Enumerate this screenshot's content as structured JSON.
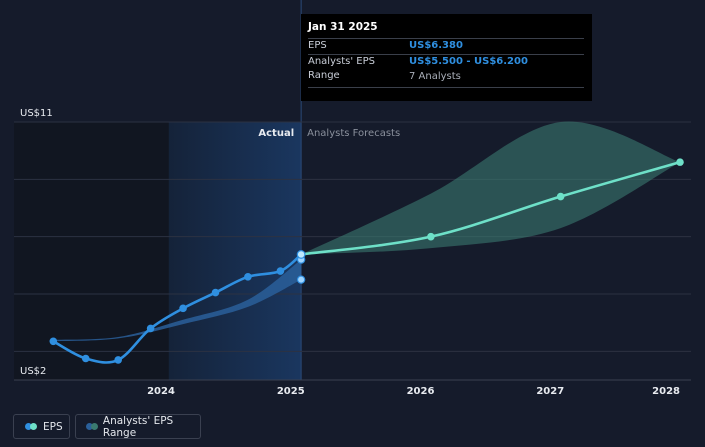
{
  "colors": {
    "background": "#151b2b",
    "eps_past": "#2f8fe0",
    "eps_forecast": "#6ee0c8",
    "range_past": "#2a5f9a",
    "range_forecast": "#3a7a70",
    "highlight": "#1b3a66",
    "gridline": "#2c3242",
    "tooltip_value": "#2f8fe0"
  },
  "tooltip": {
    "date": "Jan 31 2025",
    "eps_label": "EPS",
    "eps_value": "US$6.380",
    "range_label": "Analysts' EPS Range",
    "range_value": "US$5.500 - US$6.200",
    "analysts": "7 Analysts"
  },
  "legend": {
    "eps_label": "EPS",
    "range_label": "Analysts' EPS Range"
  },
  "chart_data": {
    "type": "line",
    "y_tick_labels": [
      "US$11",
      "US$2"
    ],
    "ylim": [
      2,
      11
    ],
    "xlim": [
      2023.15,
      2028.0
    ],
    "x_tick_labels": [
      "2024",
      "2025",
      "2026",
      "2027",
      "2028"
    ],
    "x_ticks": [
      2024.0,
      2025.0,
      2026.0,
      2027.0,
      2028.0
    ],
    "divider_x": 2025.08,
    "highlight_start": 2024.06,
    "region_labels": {
      "actual": "Actual",
      "forecast": "Analysts Forecasts"
    },
    "grid": true,
    "legend_position": "bottom-left",
    "series": [
      {
        "name": "EPS",
        "kind": "actual",
        "points": [
          [
            2023.17,
            3.35
          ],
          [
            2023.42,
            2.75
          ],
          [
            2023.67,
            2.7
          ],
          [
            2023.92,
            3.8
          ],
          [
            2024.17,
            4.5
          ],
          [
            2024.42,
            5.05
          ],
          [
            2024.67,
            5.6
          ],
          [
            2024.92,
            5.8
          ],
          [
            2025.08,
            6.38
          ]
        ]
      },
      {
        "name": "EPS",
        "kind": "forecast",
        "points": [
          [
            2025.08,
            6.38
          ],
          [
            2026.08,
            7.0
          ],
          [
            2027.08,
            8.4
          ],
          [
            2028.0,
            9.6
          ]
        ]
      },
      {
        "name": "Analysts' EPS Range",
        "kind": "range_actual",
        "upper": [
          [
            2023.17,
            3.4
          ],
          [
            2023.67,
            3.5
          ],
          [
            2024.17,
            4.1
          ],
          [
            2024.67,
            4.8
          ],
          [
            2025.08,
            6.2
          ]
        ],
        "lower": [
          [
            2023.17,
            3.35
          ],
          [
            2023.67,
            3.45
          ],
          [
            2024.17,
            3.95
          ],
          [
            2024.67,
            4.55
          ],
          [
            2025.08,
            5.5
          ]
        ]
      },
      {
        "name": "Analysts' EPS Range",
        "kind": "range_forecast",
        "upper": [
          [
            2025.08,
            6.38
          ],
          [
            2026.08,
            8.5
          ],
          [
            2027.08,
            11.0
          ],
          [
            2028.0,
            9.6
          ]
        ],
        "lower": [
          [
            2025.08,
            6.38
          ],
          [
            2026.08,
            6.6
          ],
          [
            2027.08,
            7.3
          ],
          [
            2028.0,
            9.6
          ]
        ]
      }
    ],
    "markers": [
      [
        2025.08,
        6.2
      ],
      [
        2025.08,
        5.5
      ]
    ]
  }
}
